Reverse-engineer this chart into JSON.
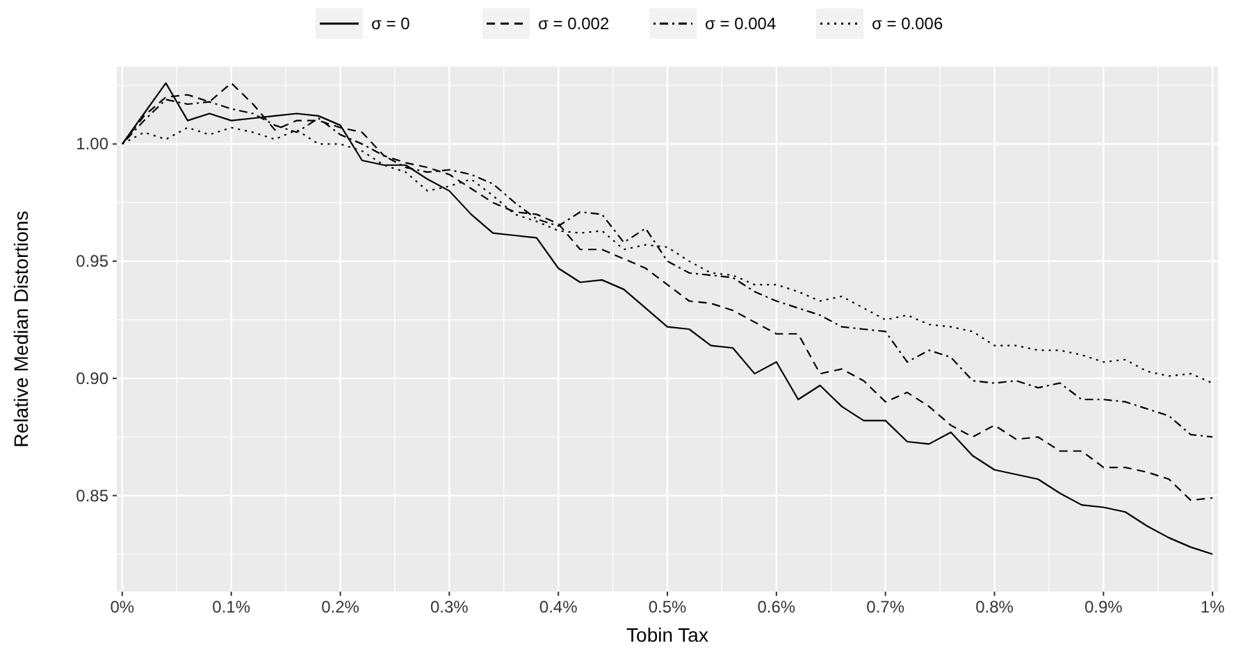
{
  "chart_data": {
    "type": "line",
    "xlabel": "Tobin Tax",
    "ylabel": "Relative Median Distortions",
    "x": [
      0,
      0.02,
      0.04,
      0.06,
      0.08,
      0.1,
      0.12,
      0.14,
      0.16,
      0.18,
      0.2,
      0.22,
      0.24,
      0.26,
      0.28,
      0.3,
      0.32,
      0.34,
      0.36,
      0.38,
      0.4,
      0.42,
      0.44,
      0.46,
      0.48,
      0.5,
      0.52,
      0.54,
      0.56,
      0.58,
      0.6,
      0.62,
      0.64,
      0.66,
      0.68,
      0.7,
      0.72,
      0.74,
      0.76,
      0.78,
      0.8,
      0.82,
      0.84,
      0.86,
      0.88,
      0.9,
      0.92,
      0.94,
      0.96,
      0.98,
      1
    ],
    "xlim": [
      -0.005,
      1.005
    ],
    "ylim": [
      0.809,
      1.033
    ],
    "xticks": [
      {
        "value": 0,
        "label": "0%"
      },
      {
        "value": 0.1,
        "label": "0.1%"
      },
      {
        "value": 0.2,
        "label": "0.2%"
      },
      {
        "value": 0.3,
        "label": "0.3%"
      },
      {
        "value": 0.4,
        "label": "0.4%"
      },
      {
        "value": 0.5,
        "label": "0.5%"
      },
      {
        "value": 0.6,
        "label": "0.6%"
      },
      {
        "value": 0.7,
        "label": "0.7%"
      },
      {
        "value": 0.8,
        "label": "0.8%"
      },
      {
        "value": 0.9,
        "label": "0.9%"
      },
      {
        "value": 1,
        "label": "1%"
      }
    ],
    "yticks": [
      {
        "value": 0.85,
        "label": "0.85"
      },
      {
        "value": 0.9,
        "label": "0.90"
      },
      {
        "value": 0.95,
        "label": "0.95"
      },
      {
        "value": 1,
        "label": "1.00"
      }
    ],
    "grid": true,
    "legend": "top",
    "marker": "none",
    "series": [
      {
        "name": "σ = 0",
        "color": "#000000",
        "line_style": "solid",
        "values": [
          1.0,
          1.013,
          1.026,
          1.01,
          1.013,
          1.01,
          1.011,
          1.012,
          1.013,
          1.012,
          1.008,
          0.993,
          0.991,
          0.991,
          0.985,
          0.98,
          0.97,
          0.962,
          0.961,
          0.96,
          0.947,
          0.941,
          0.942,
          0.938,
          0.93,
          0.922,
          0.921,
          0.914,
          0.913,
          0.902,
          0.907,
          0.891,
          0.897,
          0.888,
          0.882,
          0.882,
          0.873,
          0.872,
          0.877,
          0.867,
          0.861,
          0.859,
          0.857,
          0.851,
          0.846,
          0.845,
          0.843,
          0.837,
          0.832,
          0.828,
          0.825
        ]
      },
      {
        "name": "σ = 0.002",
        "color": "#000000",
        "line_style": "dashed",
        "values": [
          1.0,
          1.012,
          1.02,
          1.021,
          1.018,
          1.026,
          1.017,
          1.006,
          1.01,
          1.01,
          1.007,
          1.005,
          0.995,
          0.992,
          0.99,
          0.987,
          0.981,
          0.975,
          0.971,
          0.97,
          0.966,
          0.955,
          0.955,
          0.951,
          0.947,
          0.94,
          0.933,
          0.932,
          0.929,
          0.924,
          0.919,
          0.919,
          0.902,
          0.904,
          0.899,
          0.89,
          0.894,
          0.888,
          0.88,
          0.875,
          0.88,
          0.874,
          0.875,
          0.869,
          0.869,
          0.862,
          0.862,
          0.86,
          0.857,
          0.848,
          0.849
        ]
      },
      {
        "name": "σ = 0.004",
        "color": "#000000",
        "line_style": "dashdot",
        "values": [
          1.0,
          1.01,
          1.019,
          1.017,
          1.018,
          1.015,
          1.013,
          1.008,
          1.005,
          1.011,
          1.004,
          1.0,
          0.995,
          0.99,
          0.988,
          0.989,
          0.987,
          0.983,
          0.975,
          0.968,
          0.965,
          0.971,
          0.97,
          0.958,
          0.964,
          0.95,
          0.945,
          0.944,
          0.943,
          0.937,
          0.933,
          0.93,
          0.927,
          0.922,
          0.921,
          0.92,
          0.907,
          0.912,
          0.909,
          0.899,
          0.898,
          0.899,
          0.896,
          0.898,
          0.891,
          0.891,
          0.89,
          0.887,
          0.884,
          0.876,
          0.875
        ]
      },
      {
        "name": "σ = 0.006",
        "color": "#000000",
        "line_style": "dotted",
        "values": [
          1.0,
          1.005,
          1.002,
          1.007,
          1.004,
          1.007,
          1.005,
          1.002,
          1.006,
          1.0,
          1.0,
          0.997,
          0.991,
          0.988,
          0.98,
          0.982,
          0.985,
          0.978,
          0.97,
          0.967,
          0.963,
          0.962,
          0.963,
          0.955,
          0.957,
          0.956,
          0.95,
          0.945,
          0.944,
          0.94,
          0.94,
          0.937,
          0.933,
          0.935,
          0.93,
          0.925,
          0.927,
          0.923,
          0.922,
          0.92,
          0.914,
          0.914,
          0.912,
          0.912,
          0.91,
          0.907,
          0.908,
          0.903,
          0.901,
          0.902,
          0.898
        ]
      }
    ]
  }
}
